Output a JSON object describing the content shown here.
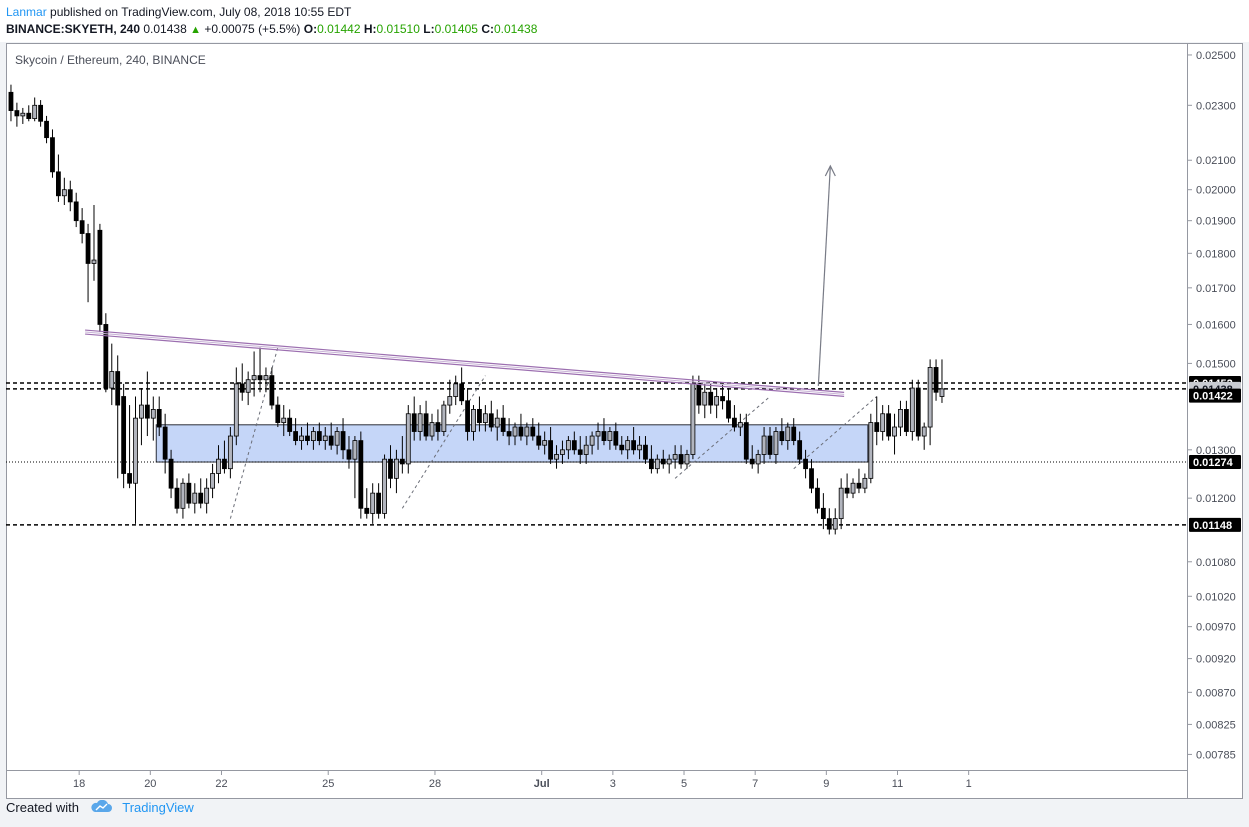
{
  "header": {
    "author": "Lanmar",
    "published_text": "published on TradingView.com, July 08, 2018 10:55 EDT",
    "symbol": "BINANCE:SKYETH, 240",
    "last": "0.01438",
    "change": "+0.00075 (+5.5%)",
    "o_label": "O:",
    "o_value": "0.01442",
    "h_label": "H:",
    "h_value": "0.01510",
    "l_label": "L:",
    "l_value": "0.01405",
    "c_label": "C:",
    "c_value": "0.01438",
    "up_glyph": "▲"
  },
  "footer": {
    "created_with": "Created with",
    "brand": "TradingView"
  },
  "chart_data": {
    "type": "candlestick",
    "title": "Skycoin / Ethereum, 240, BINANCE",
    "colors": {
      "up": "#ffffff",
      "down": "#000000",
      "up_body_fill": "#b2b5be",
      "zone": "#c5d6f8",
      "zone_border": "#2a2e39",
      "trendline": "#9c6fb0",
      "arrow": "#787b86"
    },
    "x_ticks": [
      "18",
      "20",
      "22",
      "25",
      "28",
      "Jul",
      "3",
      "5",
      "7",
      "9",
      "11",
      "1"
    ],
    "y_ticks": [
      "0.02500",
      "0.02300",
      "0.02100",
      "0.02000",
      "0.01900",
      "0.01800",
      "0.01700",
      "0.01600",
      "0.01500",
      "0.01300",
      "0.01200",
      "0.01080",
      "0.01020",
      "0.00970",
      "0.00920",
      "0.00870",
      "0.00825",
      "0.00785"
    ],
    "y_scale": "log",
    "y_range": [
      0.00765,
      0.0255
    ],
    "horizontal_levels": [
      {
        "value": 0.01452,
        "label": "0.01452",
        "style": "dashed",
        "tag": "black"
      },
      {
        "value": 0.01438,
        "label": "0.01438",
        "style": "dashed",
        "tag": "gray"
      },
      {
        "value": 0.01274,
        "label": "0.01274",
        "style": "dotted",
        "tag": "black"
      },
      {
        "value": 0.01148,
        "label": "0.01148",
        "style": "dashed",
        "tag": "black"
      }
    ],
    "price_tags": [
      {
        "value": 0.01422,
        "label": "0.01422",
        "tag": "black"
      }
    ],
    "support_zone": {
      "x_start": "Jun 20 04:00",
      "x_end": "Jul 10 04:00",
      "low": 0.01274,
      "high": 0.01355
    },
    "trendline": {
      "start": {
        "x": "Jun 18 04:00",
        "y": 0.0158
      },
      "end": {
        "x": "Jul 9 12:00",
        "y": 0.01425
      }
    },
    "target_arrow": {
      "x": "Jul 9 00:00",
      "from": 0.01445,
      "to": 0.0208
    },
    "x_start": "Jun 16 00:00",
    "x_step_hours": 4,
    "series": [
      {
        "o": 0.0235,
        "h": 0.0238,
        "l": 0.0224,
        "c": 0.0228
      },
      {
        "o": 0.0228,
        "h": 0.0231,
        "l": 0.0222,
        "c": 0.0226
      },
      {
        "o": 0.0226,
        "h": 0.0229,
        "l": 0.0223,
        "c": 0.0227
      },
      {
        "o": 0.0227,
        "h": 0.023,
        "l": 0.0224,
        "c": 0.0225
      },
      {
        "o": 0.0225,
        "h": 0.0233,
        "l": 0.0224,
        "c": 0.023
      },
      {
        "o": 0.023,
        "h": 0.0232,
        "l": 0.0222,
        "c": 0.0224
      },
      {
        "o": 0.0224,
        "h": 0.0226,
        "l": 0.0216,
        "c": 0.0218
      },
      {
        "o": 0.0218,
        "h": 0.0221,
        "l": 0.0204,
        "c": 0.0206
      },
      {
        "o": 0.0206,
        "h": 0.0212,
        "l": 0.0196,
        "c": 0.0198
      },
      {
        "o": 0.0198,
        "h": 0.0204,
        "l": 0.0195,
        "c": 0.02
      },
      {
        "o": 0.02,
        "h": 0.0203,
        "l": 0.0193,
        "c": 0.0196
      },
      {
        "o": 0.0196,
        "h": 0.0199,
        "l": 0.0188,
        "c": 0.019
      },
      {
        "o": 0.019,
        "h": 0.0194,
        "l": 0.0183,
        "c": 0.0186
      },
      {
        "o": 0.0186,
        "h": 0.0189,
        "l": 0.0166,
        "c": 0.0177
      },
      {
        "o": 0.0177,
        "h": 0.0195,
        "l": 0.0172,
        "c": 0.0178
      },
      {
        "o": 0.0187,
        "h": 0.0189,
        "l": 0.0158,
        "c": 0.016
      },
      {
        "o": 0.016,
        "h": 0.0163,
        "l": 0.0143,
        "c": 0.0144
      },
      {
        "o": 0.0144,
        "h": 0.0155,
        "l": 0.014,
        "c": 0.0148
      },
      {
        "o": 0.0148,
        "h": 0.0152,
        "l": 0.0124,
        "c": 0.014
      },
      {
        "o": 0.0142,
        "h": 0.0145,
        "l": 0.0122,
        "c": 0.0125
      },
      {
        "o": 0.0125,
        "h": 0.014,
        "l": 0.0122,
        "c": 0.0123
      },
      {
        "o": 0.0123,
        "h": 0.0142,
        "l": 0.0115,
        "c": 0.0137
      },
      {
        "o": 0.0137,
        "h": 0.0144,
        "l": 0.0131,
        "c": 0.014
      },
      {
        "o": 0.014,
        "h": 0.0148,
        "l": 0.0133,
        "c": 0.0137
      },
      {
        "o": 0.0137,
        "h": 0.0142,
        "l": 0.0132,
        "c": 0.0139
      },
      {
        "o": 0.0139,
        "h": 0.0142,
        "l": 0.0133,
        "c": 0.0135
      },
      {
        "o": 0.0135,
        "h": 0.0138,
        "l": 0.0125,
        "c": 0.0128
      },
      {
        "o": 0.0128,
        "h": 0.013,
        "l": 0.012,
        "c": 0.0122
      },
      {
        "o": 0.0122,
        "h": 0.0124,
        "l": 0.0117,
        "c": 0.0118
      },
      {
        "o": 0.0118,
        "h": 0.0124,
        "l": 0.0116,
        "c": 0.0123
      },
      {
        "o": 0.0123,
        "h": 0.0125,
        "l": 0.0118,
        "c": 0.0119
      },
      {
        "o": 0.0119,
        "h": 0.0123,
        "l": 0.0117,
        "c": 0.0121
      },
      {
        "o": 0.0121,
        "h": 0.0124,
        "l": 0.0118,
        "c": 0.0119
      },
      {
        "o": 0.0119,
        "h": 0.0124,
        "l": 0.0117,
        "c": 0.0122
      },
      {
        "o": 0.0122,
        "h": 0.0127,
        "l": 0.012,
        "c": 0.0125
      },
      {
        "o": 0.0125,
        "h": 0.0131,
        "l": 0.0123,
        "c": 0.0128
      },
      {
        "o": 0.0128,
        "h": 0.0132,
        "l": 0.0125,
        "c": 0.0126
      },
      {
        "o": 0.0126,
        "h": 0.0135,
        "l": 0.0124,
        "c": 0.0133
      },
      {
        "o": 0.0133,
        "h": 0.0149,
        "l": 0.0131,
        "c": 0.0145
      },
      {
        "o": 0.0145,
        "h": 0.015,
        "l": 0.0141,
        "c": 0.0143
      },
      {
        "o": 0.0143,
        "h": 0.0148,
        "l": 0.014,
        "c": 0.0146
      },
      {
        "o": 0.0146,
        "h": 0.0153,
        "l": 0.0142,
        "c": 0.0147
      },
      {
        "o": 0.0147,
        "h": 0.0154,
        "l": 0.0143,
        "c": 0.0146
      },
      {
        "o": 0.0146,
        "h": 0.0149,
        "l": 0.0143,
        "c": 0.0147
      },
      {
        "o": 0.0147,
        "h": 0.0149,
        "l": 0.0139,
        "c": 0.014
      },
      {
        "o": 0.014,
        "h": 0.0142,
        "l": 0.0135,
        "c": 0.0136
      },
      {
        "o": 0.0136,
        "h": 0.014,
        "l": 0.0133,
        "c": 0.0137
      },
      {
        "o": 0.0137,
        "h": 0.0139,
        "l": 0.0133,
        "c": 0.0134
      },
      {
        "o": 0.0134,
        "h": 0.0137,
        "l": 0.0131,
        "c": 0.0132
      },
      {
        "o": 0.0132,
        "h": 0.0135,
        "l": 0.013,
        "c": 0.0133
      },
      {
        "o": 0.0133,
        "h": 0.0136,
        "l": 0.0131,
        "c": 0.0132
      },
      {
        "o": 0.0132,
        "h": 0.0135,
        "l": 0.013,
        "c": 0.0134
      },
      {
        "o": 0.0134,
        "h": 0.0136,
        "l": 0.0131,
        "c": 0.0132
      },
      {
        "o": 0.0132,
        "h": 0.0135,
        "l": 0.013,
        "c": 0.0133
      },
      {
        "o": 0.0133,
        "h": 0.0136,
        "l": 0.013,
        "c": 0.0131
      },
      {
        "o": 0.0131,
        "h": 0.0135,
        "l": 0.0129,
        "c": 0.0134
      },
      {
        "o": 0.0134,
        "h": 0.0137,
        "l": 0.0128,
        "c": 0.013
      },
      {
        "o": 0.013,
        "h": 0.0133,
        "l": 0.0126,
        "c": 0.0128
      },
      {
        "o": 0.0128,
        "h": 0.0133,
        "l": 0.012,
        "c": 0.0132
      },
      {
        "o": 0.0132,
        "h": 0.0134,
        "l": 0.0116,
        "c": 0.0118
      },
      {
        "o": 0.0118,
        "h": 0.0122,
        "l": 0.0116,
        "c": 0.0117
      },
      {
        "o": 0.0117,
        "h": 0.0123,
        "l": 0.0115,
        "c": 0.0121
      },
      {
        "o": 0.0121,
        "h": 0.0123,
        "l": 0.0116,
        "c": 0.0117
      },
      {
        "o": 0.0117,
        "h": 0.0129,
        "l": 0.0116,
        "c": 0.0128
      },
      {
        "o": 0.0128,
        "h": 0.0131,
        "l": 0.0122,
        "c": 0.0124
      },
      {
        "o": 0.0124,
        "h": 0.013,
        "l": 0.0121,
        "c": 0.0128
      },
      {
        "o": 0.0128,
        "h": 0.0133,
        "l": 0.0125,
        "c": 0.0127
      },
      {
        "o": 0.0127,
        "h": 0.014,
        "l": 0.0125,
        "c": 0.0138
      },
      {
        "o": 0.0138,
        "h": 0.0142,
        "l": 0.0132,
        "c": 0.0134
      },
      {
        "o": 0.0134,
        "h": 0.014,
        "l": 0.0132,
        "c": 0.0138
      },
      {
        "o": 0.0138,
        "h": 0.0141,
        "l": 0.0132,
        "c": 0.0133
      },
      {
        "o": 0.0133,
        "h": 0.0138,
        "l": 0.0132,
        "c": 0.0136
      },
      {
        "o": 0.0136,
        "h": 0.0139,
        "l": 0.0132,
        "c": 0.0134
      },
      {
        "o": 0.0134,
        "h": 0.0141,
        "l": 0.0133,
        "c": 0.014
      },
      {
        "o": 0.014,
        "h": 0.0146,
        "l": 0.0138,
        "c": 0.0142
      },
      {
        "o": 0.0142,
        "h": 0.0147,
        "l": 0.014,
        "c": 0.0145
      },
      {
        "o": 0.0145,
        "h": 0.0149,
        "l": 0.014,
        "c": 0.0141
      },
      {
        "o": 0.0141,
        "h": 0.0144,
        "l": 0.0132,
        "c": 0.0134
      },
      {
        "o": 0.0134,
        "h": 0.014,
        "l": 0.0132,
        "c": 0.0139
      },
      {
        "o": 0.0139,
        "h": 0.0142,
        "l": 0.0134,
        "c": 0.0136
      },
      {
        "o": 0.0136,
        "h": 0.014,
        "l": 0.0134,
        "c": 0.0138
      },
      {
        "o": 0.0138,
        "h": 0.0141,
        "l": 0.0134,
        "c": 0.0135
      },
      {
        "o": 0.0135,
        "h": 0.0139,
        "l": 0.0132,
        "c": 0.0137
      },
      {
        "o": 0.0137,
        "h": 0.014,
        "l": 0.0133,
        "c": 0.0134
      },
      {
        "o": 0.0134,
        "h": 0.0137,
        "l": 0.0131,
        "c": 0.0133
      },
      {
        "o": 0.0133,
        "h": 0.0136,
        "l": 0.0131,
        "c": 0.0135
      },
      {
        "o": 0.0135,
        "h": 0.0138,
        "l": 0.0132,
        "c": 0.0133
      },
      {
        "o": 0.0133,
        "h": 0.0136,
        "l": 0.0131,
        "c": 0.0135
      },
      {
        "o": 0.0135,
        "h": 0.0137,
        "l": 0.0132,
        "c": 0.0133
      },
      {
        "o": 0.0133,
        "h": 0.0136,
        "l": 0.013,
        "c": 0.0131
      },
      {
        "o": 0.0131,
        "h": 0.0134,
        "l": 0.0129,
        "c": 0.0132
      },
      {
        "o": 0.0132,
        "h": 0.0135,
        "l": 0.0127,
        "c": 0.0128
      },
      {
        "o": 0.0128,
        "h": 0.0131,
        "l": 0.0126,
        "c": 0.0129
      },
      {
        "o": 0.0129,
        "h": 0.0132,
        "l": 0.0127,
        "c": 0.013
      },
      {
        "o": 0.013,
        "h": 0.0133,
        "l": 0.0128,
        "c": 0.0132
      },
      {
        "o": 0.0132,
        "h": 0.0134,
        "l": 0.0129,
        "c": 0.013
      },
      {
        "o": 0.013,
        "h": 0.0133,
        "l": 0.0127,
        "c": 0.0129
      },
      {
        "o": 0.0129,
        "h": 0.0133,
        "l": 0.0127,
        "c": 0.0131
      },
      {
        "o": 0.0131,
        "h": 0.0134,
        "l": 0.0129,
        "c": 0.0133
      },
      {
        "o": 0.0133,
        "h": 0.0136,
        "l": 0.013,
        "c": 0.0134
      },
      {
        "o": 0.0134,
        "h": 0.0137,
        "l": 0.0131,
        "c": 0.0132
      },
      {
        "o": 0.0132,
        "h": 0.0135,
        "l": 0.013,
        "c": 0.0134
      },
      {
        "o": 0.0134,
        "h": 0.0136,
        "l": 0.013,
        "c": 0.0131
      },
      {
        "o": 0.0131,
        "h": 0.0133,
        "l": 0.0129,
        "c": 0.013
      },
      {
        "o": 0.013,
        "h": 0.0133,
        "l": 0.0128,
        "c": 0.0132
      },
      {
        "o": 0.0132,
        "h": 0.0135,
        "l": 0.0129,
        "c": 0.013
      },
      {
        "o": 0.013,
        "h": 0.0133,
        "l": 0.0128,
        "c": 0.0131
      },
      {
        "o": 0.0131,
        "h": 0.0133,
        "l": 0.0127,
        "c": 0.0128
      },
      {
        "o": 0.0128,
        "h": 0.0131,
        "l": 0.0125,
        "c": 0.0126
      },
      {
        "o": 0.0126,
        "h": 0.0129,
        "l": 0.0125,
        "c": 0.0128
      },
      {
        "o": 0.0128,
        "h": 0.013,
        "l": 0.0126,
        "c": 0.0127
      },
      {
        "o": 0.0127,
        "h": 0.0129,
        "l": 0.0125,
        "c": 0.0128
      },
      {
        "o": 0.0128,
        "h": 0.0131,
        "l": 0.0126,
        "c": 0.0129
      },
      {
        "o": 0.0129,
        "h": 0.0131,
        "l": 0.0126,
        "c": 0.0127
      },
      {
        "o": 0.0127,
        "h": 0.013,
        "l": 0.0126,
        "c": 0.0129
      },
      {
        "o": 0.0129,
        "h": 0.0147,
        "l": 0.0128,
        "c": 0.0145
      },
      {
        "o": 0.0145,
        "h": 0.0147,
        "l": 0.0138,
        "c": 0.014
      },
      {
        "o": 0.014,
        "h": 0.0145,
        "l": 0.0137,
        "c": 0.0143
      },
      {
        "o": 0.0143,
        "h": 0.0145,
        "l": 0.0138,
        "c": 0.014
      },
      {
        "o": 0.014,
        "h": 0.0144,
        "l": 0.0137,
        "c": 0.0142
      },
      {
        "o": 0.0142,
        "h": 0.0145,
        "l": 0.0139,
        "c": 0.0141
      },
      {
        "o": 0.0141,
        "h": 0.0144,
        "l": 0.0136,
        "c": 0.0137
      },
      {
        "o": 0.0137,
        "h": 0.014,
        "l": 0.0134,
        "c": 0.0135
      },
      {
        "o": 0.0135,
        "h": 0.0138,
        "l": 0.0133,
        "c": 0.0136
      },
      {
        "o": 0.0136,
        "h": 0.0138,
        "l": 0.0127,
        "c": 0.0128
      },
      {
        "o": 0.0128,
        "h": 0.0131,
        "l": 0.0126,
        "c": 0.0127
      },
      {
        "o": 0.0127,
        "h": 0.013,
        "l": 0.0125,
        "c": 0.0129
      },
      {
        "o": 0.0129,
        "h": 0.0135,
        "l": 0.0127,
        "c": 0.0133
      },
      {
        "o": 0.0133,
        "h": 0.0135,
        "l": 0.0128,
        "c": 0.0129
      },
      {
        "o": 0.0129,
        "h": 0.0135,
        "l": 0.0127,
        "c": 0.0134
      },
      {
        "o": 0.0134,
        "h": 0.0137,
        "l": 0.0131,
        "c": 0.0132
      },
      {
        "o": 0.0132,
        "h": 0.0136,
        "l": 0.013,
        "c": 0.0135
      },
      {
        "o": 0.0135,
        "h": 0.0137,
        "l": 0.0131,
        "c": 0.0132
      },
      {
        "o": 0.0132,
        "h": 0.0134,
        "l": 0.0127,
        "c": 0.0128
      },
      {
        "o": 0.0128,
        "h": 0.013,
        "l": 0.0124,
        "c": 0.0126
      },
      {
        "o": 0.0126,
        "h": 0.0128,
        "l": 0.0121,
        "c": 0.0122
      },
      {
        "o": 0.0122,
        "h": 0.0124,
        "l": 0.0117,
        "c": 0.0118
      },
      {
        "o": 0.0118,
        "h": 0.0121,
        "l": 0.0114,
        "c": 0.0116
      },
      {
        "o": 0.0116,
        "h": 0.0118,
        "l": 0.0113,
        "c": 0.0114
      },
      {
        "o": 0.0114,
        "h": 0.0118,
        "l": 0.0113,
        "c": 0.0116
      },
      {
        "o": 0.0116,
        "h": 0.0124,
        "l": 0.0114,
        "c": 0.0122
      },
      {
        "o": 0.0122,
        "h": 0.0125,
        "l": 0.012,
        "c": 0.0121
      },
      {
        "o": 0.0121,
        "h": 0.0124,
        "l": 0.012,
        "c": 0.0123
      },
      {
        "o": 0.0123,
        "h": 0.0126,
        "l": 0.0121,
        "c": 0.0122
      },
      {
        "o": 0.0122,
        "h": 0.0125,
        "l": 0.0121,
        "c": 0.0124
      },
      {
        "o": 0.0124,
        "h": 0.0138,
        "l": 0.0123,
        "c": 0.0136
      },
      {
        "o": 0.0136,
        "h": 0.0142,
        "l": 0.0131,
        "c": 0.0134
      },
      {
        "o": 0.0134,
        "h": 0.014,
        "l": 0.0132,
        "c": 0.0138
      },
      {
        "o": 0.0138,
        "h": 0.014,
        "l": 0.0132,
        "c": 0.0133
      },
      {
        "o": 0.0133,
        "h": 0.0138,
        "l": 0.0129,
        "c": 0.0135
      },
      {
        "o": 0.0135,
        "h": 0.0141,
        "l": 0.0133,
        "c": 0.0139
      },
      {
        "o": 0.0139,
        "h": 0.0141,
        "l": 0.0133,
        "c": 0.0134
      },
      {
        "o": 0.0134,
        "h": 0.0146,
        "l": 0.0132,
        "c": 0.0144
      },
      {
        "o": 0.0144,
        "h": 0.0146,
        "l": 0.0132,
        "c": 0.0133
      },
      {
        "o": 0.0133,
        "h": 0.0136,
        "l": 0.013,
        "c": 0.0135
      },
      {
        "o": 0.0135,
        "h": 0.0151,
        "l": 0.0131,
        "c": 0.0149
      },
      {
        "o": 0.0149,
        "h": 0.0151,
        "l": 0.0141,
        "c": 0.0143
      },
      {
        "o": 0.0142,
        "h": 0.0151,
        "l": 0.01405,
        "c": 0.01438
      }
    ]
  }
}
